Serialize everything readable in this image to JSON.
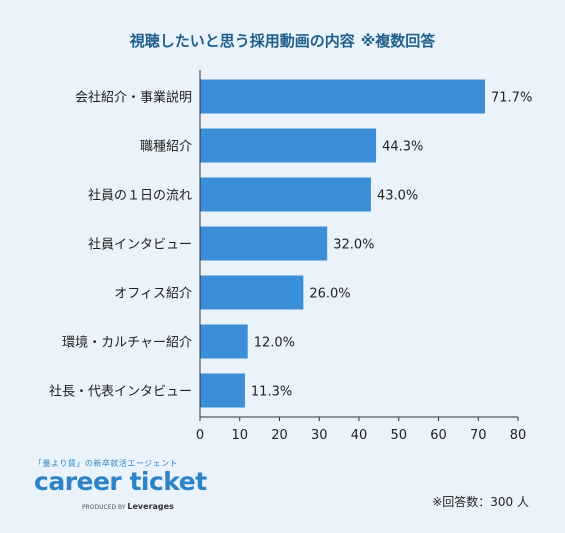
{
  "title": "視聴したいと思う採用動画の内容",
  "title_note": "※複数回答",
  "chart_data": {
    "type": "bar",
    "orientation": "horizontal",
    "categories": [
      "会社紹介・事業説明",
      "職種紹介",
      "社員の１日の流れ",
      "社員インタビュー",
      "オフィス紹介",
      "環境・カルチャー紹介",
      "社長・代表インタビュー"
    ],
    "values": [
      71.7,
      44.3,
      43.0,
      32.0,
      26.0,
      12.0,
      11.3
    ],
    "value_labels": [
      "71.7%",
      "44.3%",
      "43.0%",
      "32.0%",
      "26.0%",
      "12.0%",
      "11.3%"
    ],
    "xlim": [
      0,
      80
    ],
    "xticks": [
      0,
      10,
      20,
      30,
      40,
      50,
      60,
      70,
      80
    ],
    "grid": false,
    "bar_color": "#3a8fd8"
  },
  "brand": {
    "tagline": "「量より質」の新卒就活エージェント",
    "name": "career ticket",
    "produced_by": "PRODUCED BY",
    "company": "Leverages"
  },
  "footnote": "※回答数：300 人"
}
